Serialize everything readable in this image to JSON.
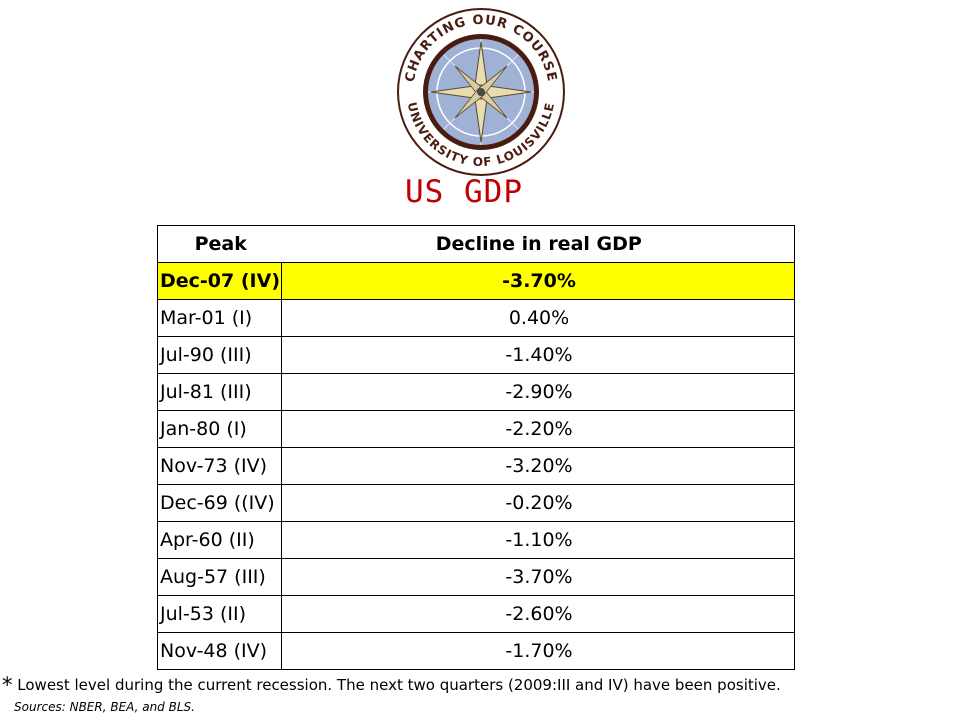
{
  "logo": {
    "ring_text_top": "CHARTING OUR COURSE",
    "ring_text_bottom": "UNIVERSITY OF LOUISVILLE"
  },
  "title": "US GDP",
  "table": {
    "headers": [
      "Peak",
      "Decline in real GDP"
    ],
    "rows": [
      {
        "peak": "Dec-07 (IV)",
        "decline": "-3.70%",
        "highlighted": true
      },
      {
        "peak": "Mar-01 (I)",
        "decline": "0.40%"
      },
      {
        "peak": "Jul-90 (III)",
        "decline": "-1.40%"
      },
      {
        "peak": "Jul-81 (III)",
        "decline": "-2.90%"
      },
      {
        "peak": "Jan-80 (I)",
        "decline": "-2.20%"
      },
      {
        "peak": "Nov-73 (IV)",
        "decline": "-3.20%"
      },
      {
        "peak": "Dec-69 ((IV)",
        "decline": "-0.20%"
      },
      {
        "peak": "Apr-60 (II)",
        "decline": "-1.10%"
      },
      {
        "peak": "Aug-57 (III)",
        "decline": "-3.70%"
      },
      {
        "peak": "Jul-53 (II)",
        "decline": "-2.60%"
      },
      {
        "peak": "Nov-48 (IV)",
        "decline": "-1.70%"
      }
    ]
  },
  "footnote": {
    "marker": "*",
    "text": "Lowest level during the current recession.  The next two quarters (2009:III and IV) have been positive."
  },
  "sources": "Sources: NBER, BEA, and BLS.",
  "colors": {
    "title": "#c00000",
    "highlight_row": "#ffff00",
    "ring": "#4a1c10",
    "compass_blue": "#6f86b8"
  }
}
